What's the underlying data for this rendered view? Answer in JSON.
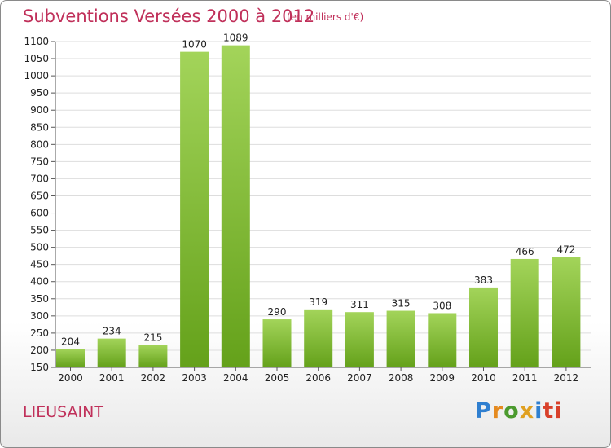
{
  "title": "Subventions Versées 2000 à 2012",
  "subtitle": "(en milliers d'€)",
  "commune": "LIEUSAINT",
  "logo": {
    "text": "Proxiti"
  },
  "colors": {
    "accent": "#c0305a",
    "bar_top": "#a3d45a",
    "bar_bottom": "#64a11a",
    "grid": "#dddddd"
  },
  "chart_data": {
    "type": "bar",
    "categories": [
      "2000",
      "2001",
      "2002",
      "2003",
      "2004",
      "2005",
      "2006",
      "2007",
      "2008",
      "2009",
      "2010",
      "2011",
      "2012"
    ],
    "values": [
      204,
      234,
      215,
      1070,
      1089,
      290,
      319,
      311,
      315,
      308,
      383,
      466,
      472
    ],
    "data_labels": [
      "204",
      "234",
      "215",
      "1070",
      "1089",
      "290",
      "319",
      "311",
      "315",
      "308",
      "383",
      "466",
      "472"
    ],
    "ylim": [
      150,
      1100
    ],
    "yticks": [
      150,
      200,
      250,
      300,
      350,
      400,
      450,
      500,
      550,
      600,
      650,
      700,
      750,
      800,
      850,
      900,
      950,
      1000,
      1050,
      1100
    ],
    "grid": true
  }
}
